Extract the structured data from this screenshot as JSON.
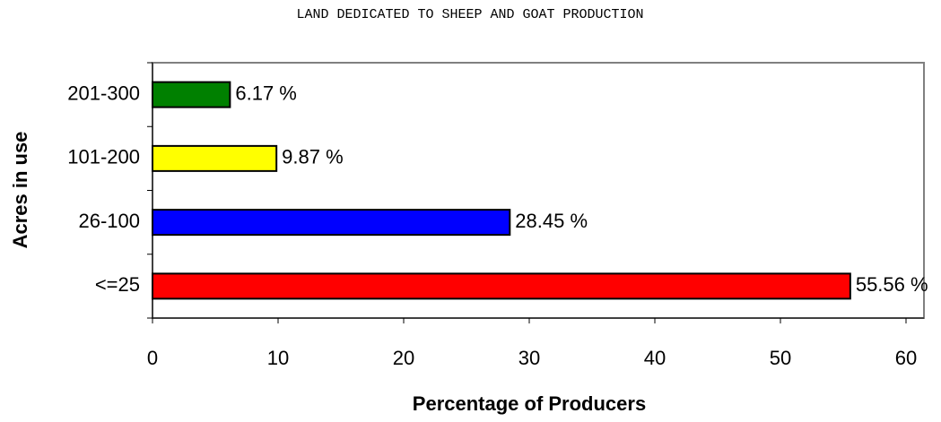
{
  "chart_data": {
    "type": "bar",
    "orientation": "horizontal",
    "title": "LAND DEDICATED TO SHEEP AND GOAT PRODUCTION",
    "x_label": "Percentage of Producers",
    "y_label": "Acres in use",
    "categories": [
      "<=25",
      "26-100",
      "101-200",
      "201-300"
    ],
    "values": [
      55.56,
      28.45,
      9.87,
      6.17
    ],
    "value_labels": [
      "55.56 %",
      "28.45 %",
      "9.87 %",
      "6.17 %"
    ],
    "colors": [
      "#ff0000",
      "#0000ff",
      "#ffff00",
      "#008000"
    ],
    "xlim": [
      0,
      60
    ],
    "xticks": [
      0,
      10,
      20,
      30,
      40,
      50,
      60
    ],
    "grid": false
  }
}
